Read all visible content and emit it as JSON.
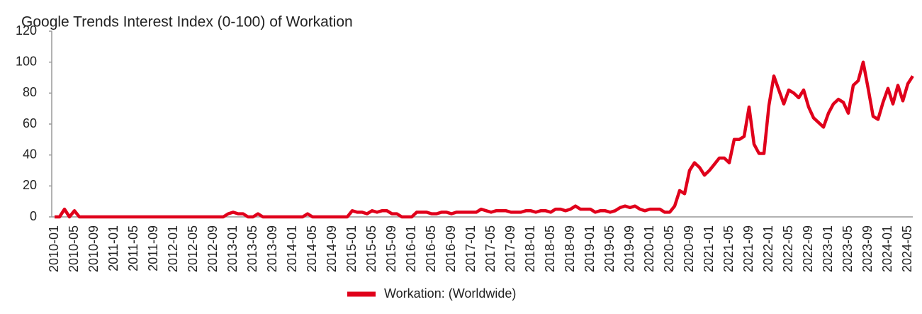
{
  "chart_data": {
    "type": "line",
    "title": "Google Trends Interest Index (0-100) of Workation",
    "categories": [
      "2010-01",
      null,
      null,
      null,
      "2010-05",
      null,
      null,
      null,
      "2010-09",
      null,
      null,
      null,
      "2011-01",
      null,
      null,
      null,
      "2011-05",
      null,
      null,
      null,
      "2011-09",
      null,
      null,
      null,
      "2012-01",
      null,
      null,
      null,
      "2012-05",
      null,
      null,
      null,
      "2012-09",
      null,
      null,
      null,
      "2013-01",
      null,
      null,
      null,
      "2013-05",
      null,
      null,
      null,
      "2013-09",
      null,
      null,
      null,
      "2014-01",
      null,
      null,
      null,
      "2014-05",
      null,
      null,
      null,
      "2014-09",
      null,
      null,
      null,
      "2015-01",
      null,
      null,
      null,
      "2015-05",
      null,
      null,
      null,
      "2015-09",
      null,
      null,
      null,
      "2016-01",
      null,
      null,
      null,
      "2016-05",
      null,
      null,
      null,
      "2016-09",
      null,
      null,
      null,
      "2017-01",
      null,
      null,
      null,
      "2017-05",
      null,
      null,
      null,
      "2017-09",
      null,
      null,
      null,
      "2018-01",
      null,
      null,
      null,
      "2018-05",
      null,
      null,
      null,
      "2018-09",
      null,
      null,
      null,
      "2019-01",
      null,
      null,
      null,
      "2019-05",
      null,
      null,
      null,
      "2019-09",
      null,
      null,
      null,
      "2020-01",
      null,
      null,
      null,
      "2020-05",
      null,
      null,
      null,
      "2020-09",
      null,
      null,
      null,
      "2021-01",
      null,
      null,
      null,
      "2021-05",
      null,
      null,
      null,
      "2021-09",
      null,
      null,
      null,
      "2022-01",
      null,
      null,
      null,
      "2022-05",
      null,
      null,
      null,
      "2022-09",
      null,
      null,
      null,
      "2023-01",
      null,
      null,
      null,
      "2023-05",
      null,
      null,
      null,
      "2023-09",
      null,
      null,
      null,
      "2024-01",
      null,
      null,
      null,
      "2024-05",
      null
    ],
    "series": [
      {
        "name": "Workation: (Worldwide)",
        "color": "#e0001b",
        "values": [
          0,
          0,
          5,
          0,
          4,
          0,
          0,
          0,
          0,
          0,
          0,
          0,
          0,
          0,
          0,
          0,
          0,
          0,
          0,
          0,
          0,
          0,
          0,
          0,
          0,
          0,
          0,
          0,
          0,
          0,
          0,
          0,
          0,
          0,
          0,
          2,
          3,
          2,
          2,
          0,
          0,
          2,
          0,
          0,
          0,
          0,
          0,
          0,
          0,
          0,
          0,
          2,
          0,
          0,
          0,
          0,
          0,
          0,
          0,
          0,
          4,
          3,
          3,
          2,
          4,
          3,
          4,
          4,
          2,
          2,
          0,
          0,
          0,
          3,
          3,
          3,
          2,
          2,
          3,
          3,
          2,
          3,
          3,
          3,
          3,
          3,
          5,
          4,
          3,
          4,
          4,
          4,
          3,
          3,
          3,
          4,
          4,
          3,
          4,
          4,
          3,
          5,
          5,
          4,
          5,
          7,
          5,
          5,
          5,
          3,
          4,
          4,
          3,
          4,
          6,
          7,
          6,
          7,
          5,
          4,
          5,
          5,
          5,
          3,
          3,
          7,
          17,
          15,
          30,
          35,
          32,
          27,
          30,
          34,
          38,
          38,
          35,
          50,
          50,
          52,
          71,
          47,
          41,
          41,
          72,
          91,
          82,
          73,
          82,
          80,
          77,
          82,
          71,
          64,
          61,
          58,
          67,
          73,
          76,
          74,
          67,
          85,
          88,
          100,
          83,
          65,
          63,
          74,
          83,
          73,
          85,
          75,
          86,
          91
        ]
      }
    ],
    "ylim": [
      0,
      120
    ],
    "yticks": [
      0,
      20,
      40,
      60,
      80,
      100,
      120
    ],
    "grid": false,
    "legend": "bottom"
  }
}
